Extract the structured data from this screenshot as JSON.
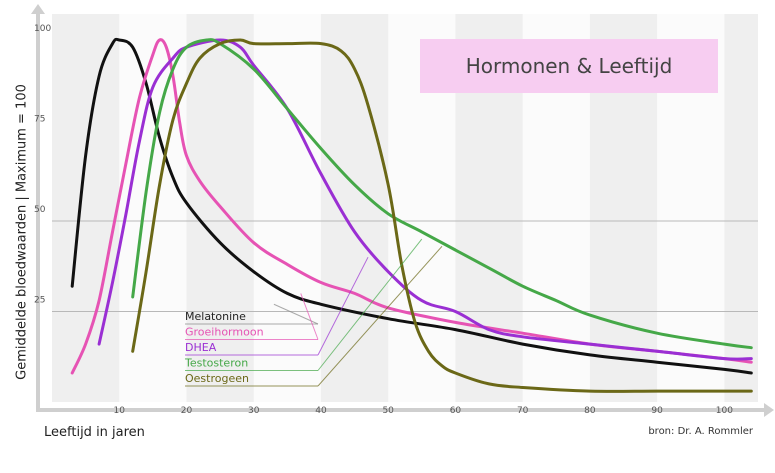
{
  "title": "Hormonen & Leeftijd",
  "source": "bron: Dr. A. Rommler",
  "chart_data": {
    "type": "line",
    "title": "Hormonen & Leeftijd",
    "xlabel": "Leeftijd in jaren",
    "ylabel": "Gemiddelde bloedwaarden | Maximum = 100",
    "xlim": [
      0,
      105
    ],
    "ylim": [
      0,
      100
    ],
    "xticks": [
      10,
      20,
      30,
      40,
      50,
      60,
      70,
      80,
      90,
      100
    ],
    "yticks": [
      25,
      50,
      75,
      100
    ],
    "grid": "horizontal lines at 25 and 50, alternating vertical bands",
    "legend_position": "bottom-center",
    "series": [
      {
        "name": "Melatonine",
        "color": "#111111",
        "x": [
          3,
          5,
          7,
          9,
          10,
          12,
          14,
          16,
          18,
          20,
          25,
          30,
          35,
          40,
          50,
          60,
          70,
          80,
          90,
          100,
          104
        ],
        "y": [
          32,
          68,
          90,
          99,
          100,
          98,
          88,
          73,
          62,
          55,
          44,
          36,
          30,
          27,
          23,
          20,
          16,
          13,
          11,
          9,
          8
        ]
      },
      {
        "name": "Groeihormoon",
        "color": "#e653b4",
        "x": [
          3,
          5,
          7,
          9,
          11,
          13,
          15,
          16,
          17,
          18,
          19,
          20,
          22,
          25,
          30,
          35,
          40,
          45,
          50,
          60,
          70,
          80,
          90,
          100,
          104
        ],
        "y": [
          8,
          16,
          28,
          47,
          66,
          84,
          96,
          100,
          98,
          90,
          77,
          68,
          61,
          54,
          44,
          38,
          33,
          30,
          26,
          22,
          19,
          16,
          14,
          12,
          11
        ]
      },
      {
        "name": "DHEA",
        "color": "#9a2fd3",
        "x": [
          7,
          9,
          11,
          13,
          15,
          18,
          20,
          25,
          28,
          30,
          35,
          40,
          45,
          50,
          55,
          60,
          65,
          70,
          80,
          90,
          100,
          104
        ],
        "y": [
          16,
          33,
          52,
          72,
          87,
          95,
          98,
          100,
          98,
          93,
          81,
          63,
          47,
          36,
          28,
          25,
          20,
          18,
          16,
          14,
          12,
          12
        ]
      },
      {
        "name": "Testosteron",
        "color": "#45a848",
        "x": [
          12,
          14,
          16,
          18,
          20,
          23,
          25,
          30,
          35,
          40,
          45,
          50,
          55,
          60,
          65,
          70,
          75,
          80,
          90,
          100,
          104
        ],
        "y": [
          29,
          58,
          80,
          92,
          98,
          100,
          99,
          92,
          81,
          70,
          60,
          52,
          47,
          42,
          37,
          32,
          28,
          24,
          19,
          16,
          15
        ]
      },
      {
        "name": "Oestrogeen",
        "color": "#6b6817",
        "x": [
          12,
          14,
          16,
          18,
          20,
          22,
          25,
          28,
          30,
          35,
          40,
          43,
          45,
          47,
          50,
          52,
          54,
          56,
          58,
          60,
          65,
          70,
          80,
          90,
          100,
          104
        ],
        "y": [
          14,
          36,
          60,
          78,
          88,
          95,
          99,
          100,
          99,
          99,
          99,
          97,
          92,
          82,
          60,
          38,
          22,
          14,
          10,
          8,
          5,
          4,
          3,
          3,
          3,
          3
        ]
      }
    ]
  }
}
